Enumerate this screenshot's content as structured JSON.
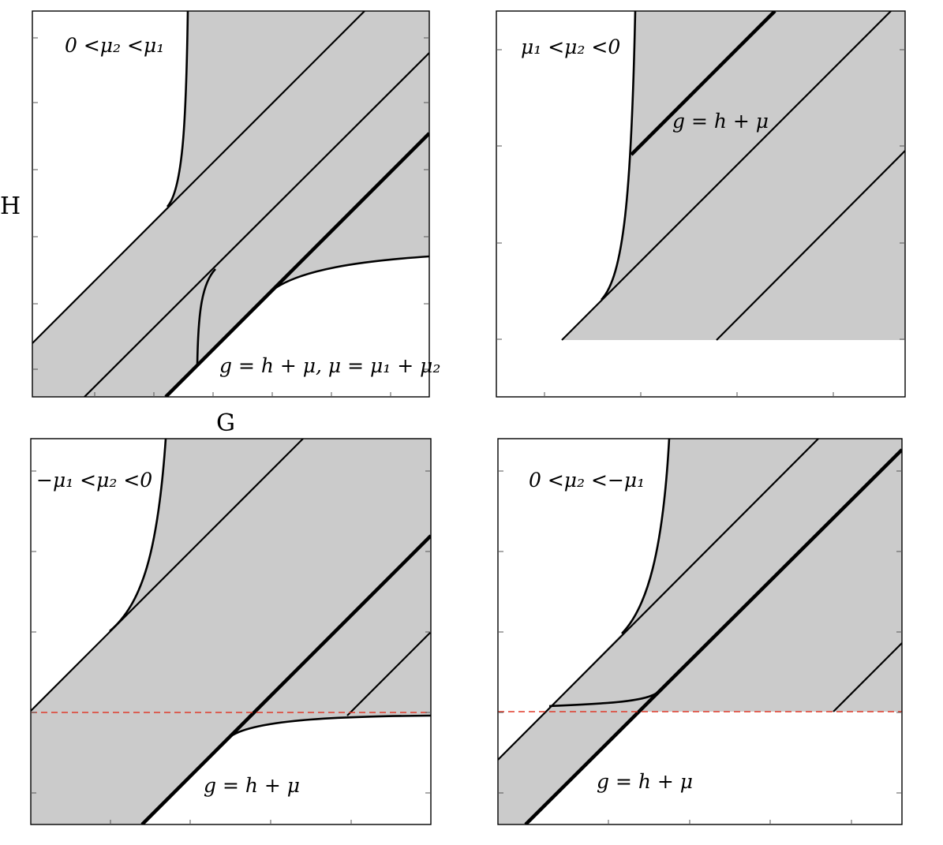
{
  "axes": {
    "x_label": "G",
    "y_label": "H"
  },
  "panels": [
    {
      "id": "top-left",
      "condition": "0 <μ₂ <μ₁",
      "line_label": "g = h + μ, μ = μ₁ + μ₂"
    },
    {
      "id": "top-right",
      "condition": "μ₁ <μ₂ <0",
      "line_label": "g = h + μ"
    },
    {
      "id": "bottom-left",
      "condition": "−μ₁ <μ₂ <0",
      "line_label": "g = h + μ"
    },
    {
      "id": "bottom-right",
      "condition": "0 <μ₂ <−μ₁",
      "line_label": "g = h + μ"
    }
  ],
  "colors": {
    "shaded_region": "#cbcbcb",
    "curves": "#000000",
    "dashed_line": "#e03a2a"
  }
}
